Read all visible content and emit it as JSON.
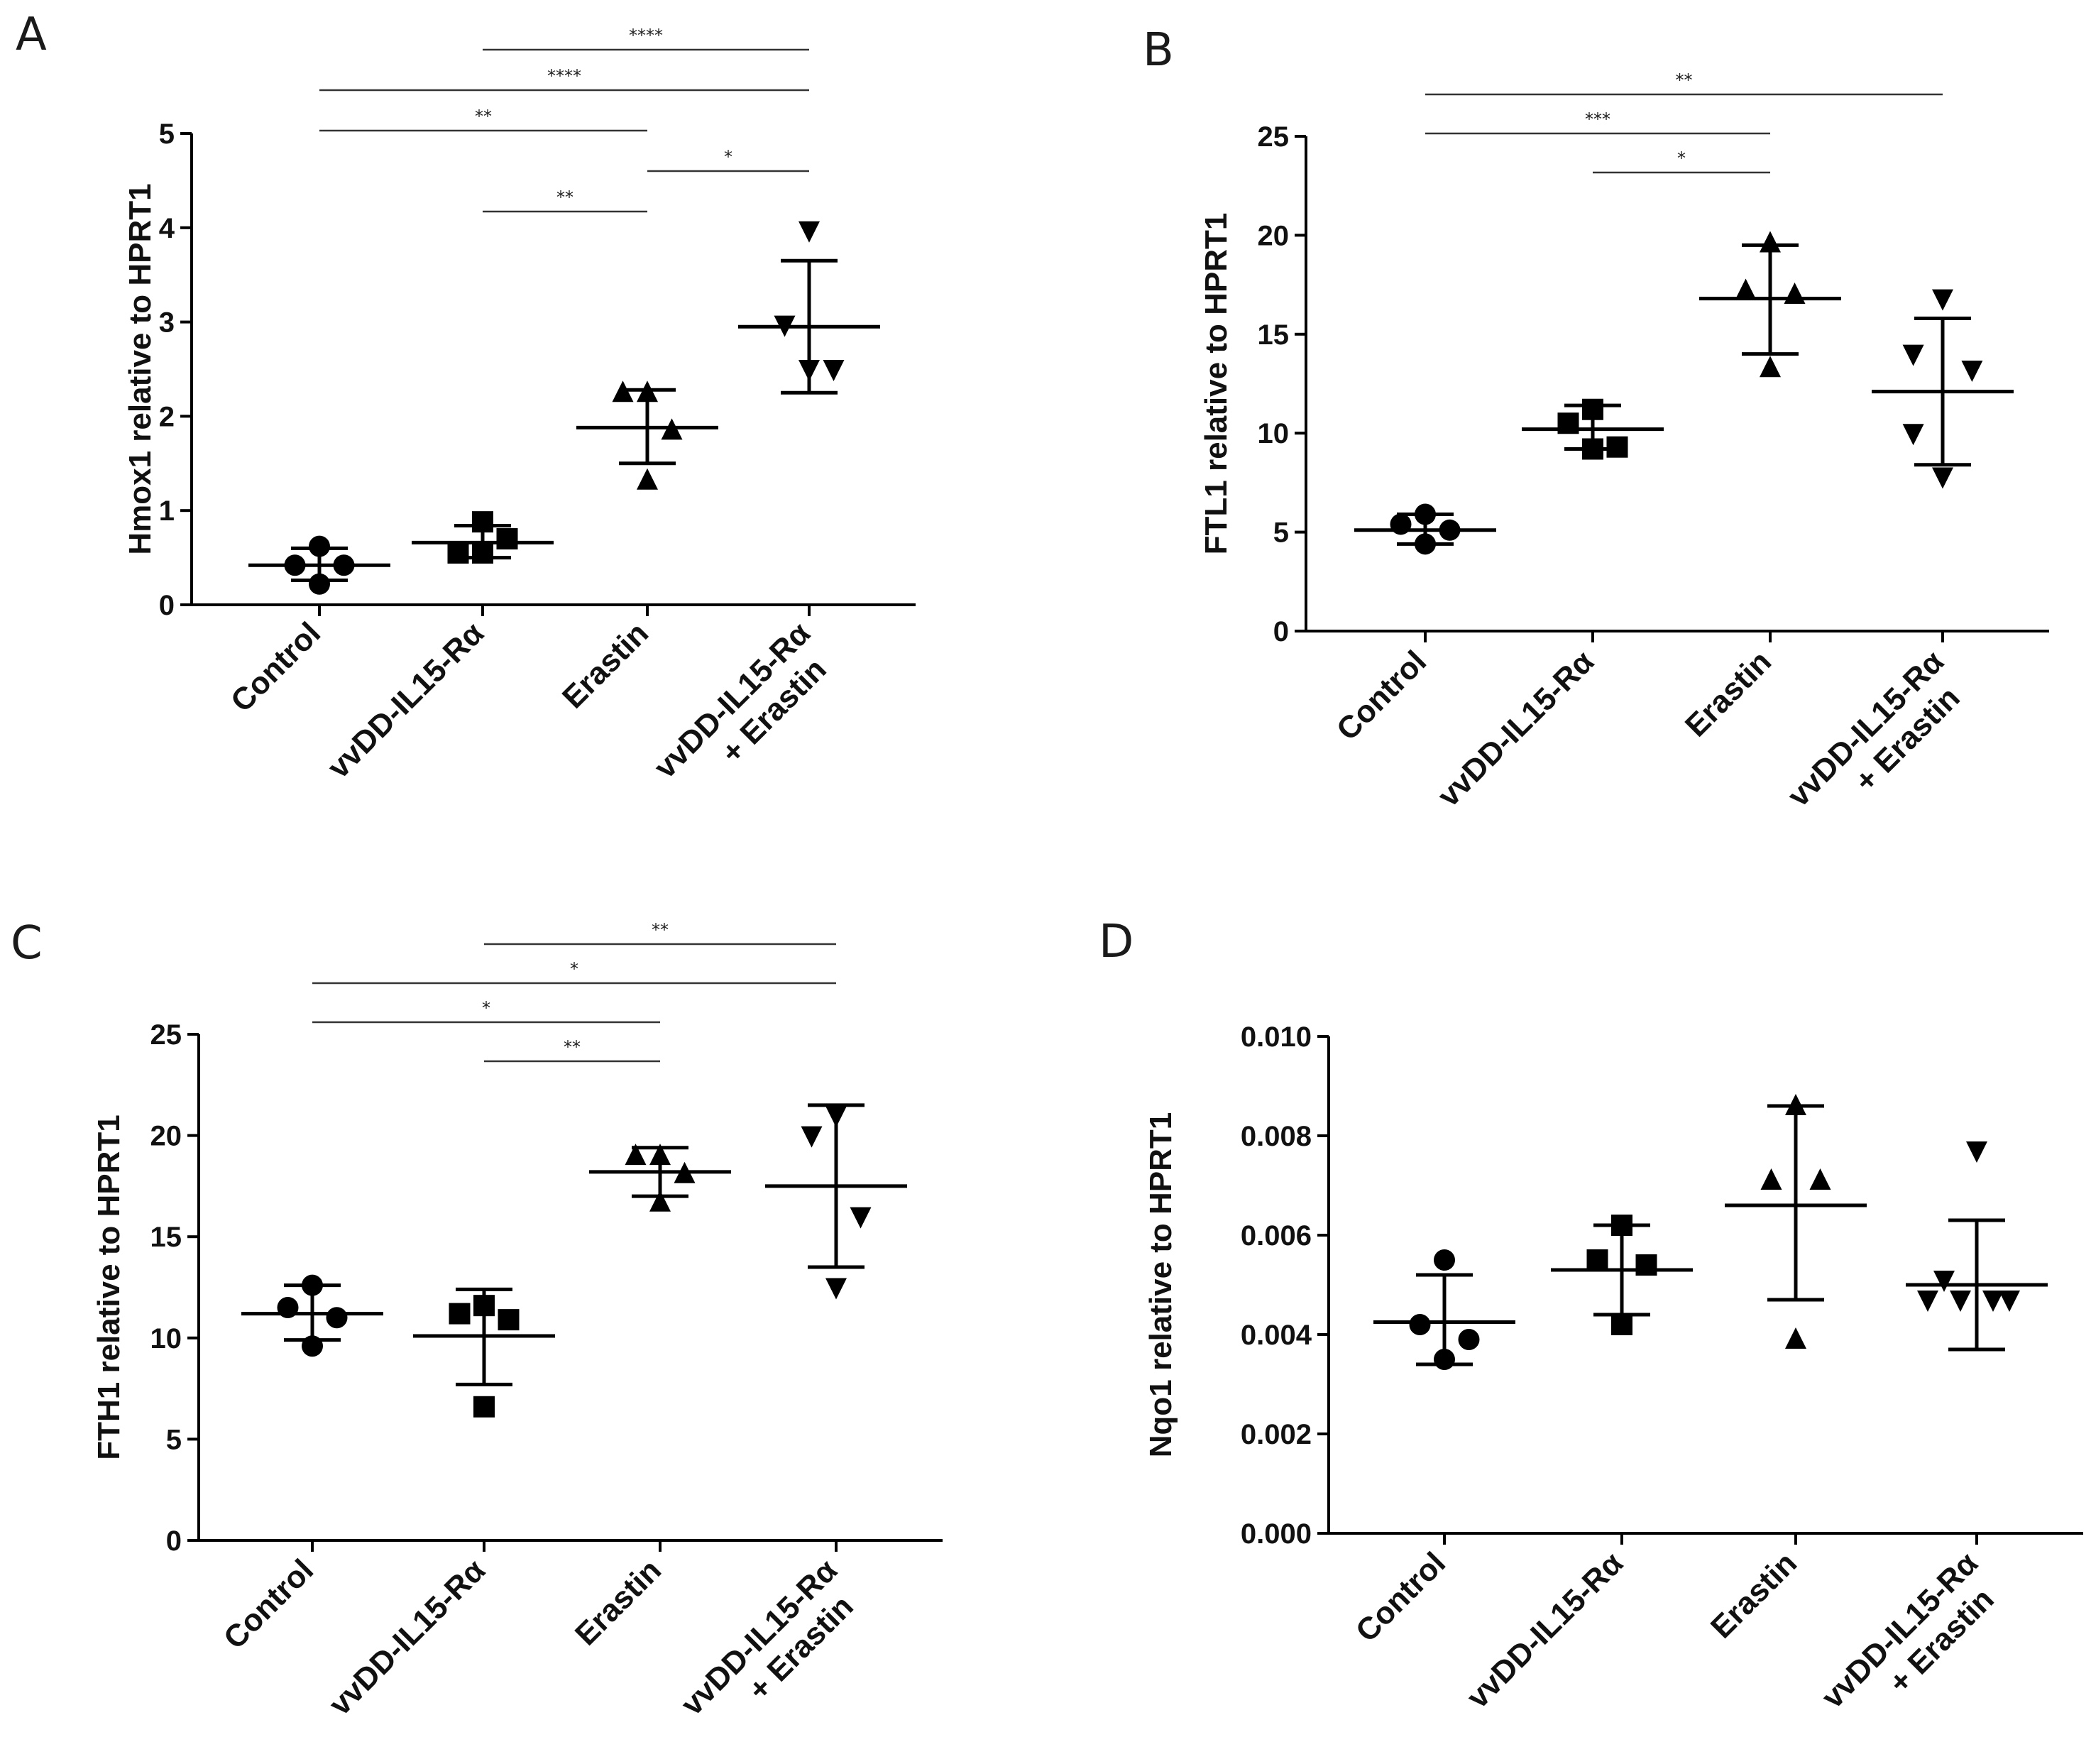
{
  "chart_data": [
    {
      "panel": "A",
      "type": "scatter",
      "ylabel": "Hmox1 relative to HPRT1",
      "ylim": [
        0,
        5
      ],
      "yticks": [
        0,
        1,
        2,
        3,
        4,
        5
      ],
      "ytick_labels": [
        "0",
        "1",
        "2",
        "3",
        "4",
        "5"
      ],
      "categories": [
        [
          "Control"
        ],
        [
          "vvDD-IL15-Rα"
        ],
        [
          "Erastin"
        ],
        [
          "vvDD-IL15-Rα",
          "+ Erastin"
        ]
      ],
      "groups": [
        {
          "marker": "circle",
          "points": [
            0.62,
            0.42,
            0.42,
            0.22
          ],
          "mean": 0.42,
          "sd": [
            0.26,
            0.6
          ]
        },
        {
          "marker": "square",
          "points": [
            0.88,
            0.55,
            0.7,
            0.55
          ],
          "mean": 0.66,
          "sd": [
            0.5,
            0.84
          ]
        },
        {
          "marker": "triangle-up",
          "points": [
            2.25,
            2.25,
            1.85,
            1.32
          ],
          "mean": 1.88,
          "sd": [
            1.5,
            2.28
          ]
        },
        {
          "marker": "triangle-down",
          "points": [
            3.97,
            2.97,
            2.5,
            2.5
          ],
          "mean": 2.95,
          "sd": [
            2.25,
            3.65
          ]
        }
      ],
      "significance": [
        {
          "from": 1,
          "to": 3,
          "label": "****",
          "level": 0
        },
        {
          "from": 0,
          "to": 3,
          "label": "****",
          "level": 1
        },
        {
          "from": 0,
          "to": 2,
          "label": "**",
          "level": 2
        },
        {
          "from": 2,
          "to": 3,
          "label": "*",
          "level": 3
        },
        {
          "from": 1,
          "to": 2,
          "label": "**",
          "level": 4
        }
      ]
    },
    {
      "panel": "B",
      "type": "scatter",
      "ylabel": "FTL1 relative to HPRT1",
      "ylim": [
        0,
        25
      ],
      "yticks": [
        0,
        5,
        10,
        15,
        20,
        25
      ],
      "ytick_labels": [
        "0",
        "5",
        "10",
        "15",
        "20",
        "25"
      ],
      "categories": [
        [
          "Control"
        ],
        [
          "vvDD-IL15-Rα"
        ],
        [
          "Erastin"
        ],
        [
          "vvDD-IL15-Rα",
          "+ Erastin"
        ]
      ],
      "groups": [
        {
          "marker": "circle",
          "points": [
            5.9,
            5.4,
            5.1,
            4.4
          ],
          "mean": 5.1,
          "sd": [
            4.4,
            5.9
          ]
        },
        {
          "marker": "square",
          "points": [
            11.2,
            10.5,
            9.3,
            9.2
          ],
          "mean": 10.2,
          "sd": [
            9.2,
            11.4
          ]
        },
        {
          "marker": "triangle-up",
          "points": [
            19.6,
            17.2,
            17.0,
            13.3
          ],
          "mean": 16.8,
          "sd": [
            14.0,
            19.5
          ]
        },
        {
          "marker": "triangle-down",
          "points": [
            16.8,
            14.0,
            13.2,
            10.0,
            7.8
          ],
          "mean": 12.1,
          "sd": [
            8.4,
            15.8
          ]
        }
      ],
      "significance": [
        {
          "from": 0,
          "to": 3,
          "label": "**",
          "level": 0
        },
        {
          "from": 0,
          "to": 2,
          "label": "***",
          "level": 1
        },
        {
          "from": 1,
          "to": 2,
          "label": "*",
          "level": 2
        }
      ]
    },
    {
      "panel": "C",
      "type": "scatter",
      "ylabel": "FTH1 relative to HPRT1",
      "ylim": [
        0,
        25
      ],
      "yticks": [
        0,
        5,
        10,
        15,
        20,
        25
      ],
      "ytick_labels": [
        "0",
        "5",
        "10",
        "15",
        "20",
        "25"
      ],
      "categories": [
        [
          "Control"
        ],
        [
          "vvDD-IL15-Rα"
        ],
        [
          "Erastin"
        ],
        [
          "vvDD-IL15-Rα",
          "+ Erastin"
        ]
      ],
      "groups": [
        {
          "marker": "circle",
          "points": [
            12.6,
            11.5,
            11.0,
            9.6
          ],
          "mean": 11.2,
          "sd": [
            9.9,
            12.6
          ]
        },
        {
          "marker": "square",
          "points": [
            11.6,
            11.2,
            10.9,
            6.6
          ],
          "mean": 10.1,
          "sd": [
            7.7,
            12.4
          ]
        },
        {
          "marker": "triangle-up",
          "points": [
            19.0,
            19.0,
            18.1,
            16.7
          ],
          "mean": 18.2,
          "sd": [
            17.0,
            19.4
          ]
        },
        {
          "marker": "triangle-down",
          "points": [
            21.0,
            20.0,
            16.0,
            12.5
          ],
          "mean": 17.5,
          "sd": [
            13.5,
            21.5
          ]
        }
      ],
      "significance": [
        {
          "from": 1,
          "to": 3,
          "label": "**",
          "level": 0
        },
        {
          "from": 0,
          "to": 3,
          "label": "*",
          "level": 1
        },
        {
          "from": 0,
          "to": 2,
          "label": "*",
          "level": 2
        },
        {
          "from": 1,
          "to": 2,
          "label": "**",
          "level": 3
        }
      ]
    },
    {
      "panel": "D",
      "type": "scatter",
      "ylabel": "Nqo1 relative to HPRT1",
      "ylim": [
        0,
        0.01
      ],
      "yticks": [
        0,
        0.002,
        0.004,
        0.006,
        0.008,
        0.01
      ],
      "ytick_labels": [
        "0.000",
        "0.002",
        "0.004",
        "0.006",
        "0.008",
        "0.010"
      ],
      "categories": [
        [
          "Control"
        ],
        [
          "vvDD-IL15-Rα"
        ],
        [
          "Erastin"
        ],
        [
          "vvDD-IL15-Rα",
          "+ Erastin"
        ]
      ],
      "groups": [
        {
          "marker": "circle",
          "points": [
            0.0055,
            0.0042,
            0.0039,
            0.0035
          ],
          "mean": 0.00425,
          "sd": [
            0.0034,
            0.0052
          ]
        },
        {
          "marker": "square",
          "points": [
            0.0062,
            0.0055,
            0.0054,
            0.0042
          ],
          "mean": 0.0053,
          "sd": [
            0.0044,
            0.0062
          ]
        },
        {
          "marker": "triangle-up",
          "points": [
            0.0086,
            0.0071,
            0.0071,
            0.0039
          ],
          "mean": 0.0066,
          "sd": [
            0.0047,
            0.0086
          ]
        },
        {
          "marker": "triangle-down",
          "points": [
            0.0077,
            0.0051,
            0.0047,
            0.0047,
            0.0047,
            0.0047
          ],
          "mean": 0.005,
          "sd": [
            0.0037,
            0.0063
          ]
        }
      ],
      "significance": []
    }
  ]
}
